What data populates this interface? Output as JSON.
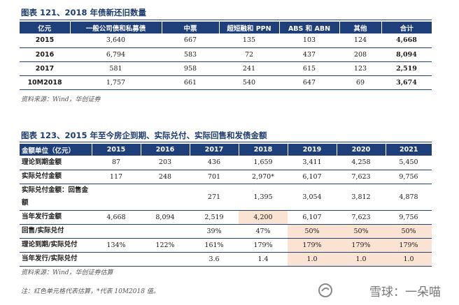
{
  "table1": {
    "title": "图表 121、2018 年债新还旧数量",
    "headers": [
      "亿元",
      "一般公司债和私募债",
      "中票",
      "超短融和 PPN",
      "ABS 和 ABN",
      "其他",
      "合计"
    ],
    "rows": [
      [
        "2015",
        "3,640",
        "667",
        "135",
        "103",
        "124",
        "4,668"
      ],
      [
        "2016",
        "6,794",
        "583",
        "72",
        "437",
        "208",
        "8,094"
      ],
      [
        "2017",
        "581",
        "958",
        "241",
        "615",
        "123",
        "2,519"
      ],
      [
        "10M2018",
        "1,757",
        "661",
        "540",
        "647",
        "69",
        "3,674"
      ]
    ],
    "source": "资料来源：Wind，华创证券"
  },
  "table2": {
    "title": "图表 123、2015 年至今房企到期、实际兑付、实际回售和发债金额",
    "headers": [
      "金额单位（亿元）",
      "2015",
      "2016",
      "2017",
      "2018",
      "2019",
      "2020",
      "2021"
    ],
    "rows": [
      [
        "理论到期金额",
        "87",
        "203",
        "436",
        "1,659",
        "3,411",
        "4,258",
        "5,450"
      ],
      [
        "实际兑付金额",
        "117",
        "248",
        "701",
        "2,970*",
        "6,107",
        "7,623",
        "9,756"
      ],
      [
        "实际兑付金额：回售金额",
        "",
        "",
        "271",
        "1,395",
        "3,054",
        "3,812",
        "4,878"
      ],
      [
        "当年发行金额",
        "4,668",
        "8,094",
        "2,519",
        "4,200",
        "6,107",
        "7,623",
        "9,756"
      ],
      [
        "回售/实际兑付",
        "",
        "",
        "39%",
        "47%",
        "50%",
        "50%",
        "50%"
      ],
      [
        "理论到期/实际兑付",
        "134%",
        "122%",
        "161%",
        "179%",
        "179%",
        "179%",
        "179%"
      ],
      [
        "当年发行/实际兑付",
        "",
        "",
        "3.6",
        "1.4",
        "1.0",
        "1.0",
        "1.0"
      ]
    ],
    "highlight_color": "#fbe3d4",
    "source": "资料来源：Wind，华创证券估算",
    "note": "注：红色单元格代表估算，*代表 10M2018 值。"
  },
  "watermark": "雪球：一朵喵",
  "colors": {
    "header_bg": "#1f3f7a",
    "title": "#1b3a6e"
  }
}
